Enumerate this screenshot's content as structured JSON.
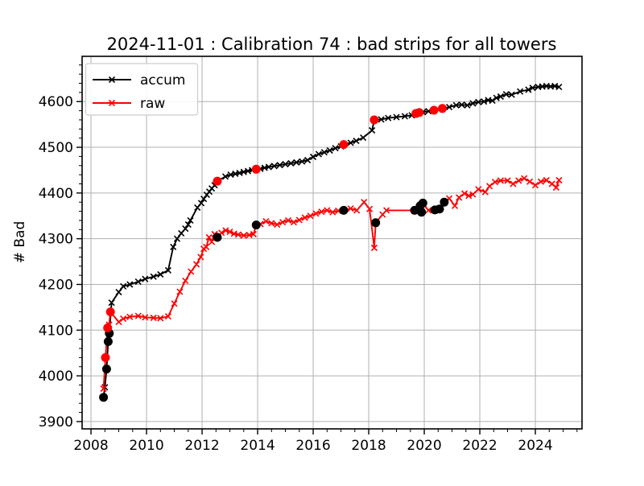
{
  "chart_data": {
    "type": "line",
    "title": "2024-11-01 : Calibration 74 : bad strips for all towers",
    "xlabel": "",
    "ylabel": "# Bad",
    "xlim": [
      2007.68,
      2025.68
    ],
    "ylim": [
      3884,
      4699
    ],
    "grid": true,
    "grid_color": "#b0b0b0",
    "spine_color": "#000000",
    "legend_position": "upper left",
    "x_tick_values": [
      2008,
      2010,
      2012,
      2014,
      2016,
      2018,
      2020,
      2022,
      2024
    ],
    "x_tick_labels": [
      "2008",
      "2010",
      "2012",
      "2014",
      "2016",
      "2018",
      "2020",
      "2022",
      "2024"
    ],
    "x_minor_step": 0.5,
    "y_tick_values": [
      3900,
      4000,
      4100,
      4200,
      4300,
      4400,
      4500,
      4600
    ],
    "y_tick_labels": [
      "3900",
      "4000",
      "4100",
      "4200",
      "4300",
      "4400",
      "4500",
      "4600"
    ],
    "y_minor_step": 20,
    "series": [
      {
        "name": "accum",
        "color": "#000000",
        "marker": "x",
        "points": [
          [
            2008.45,
            3953
          ],
          [
            2008.5,
            3975
          ],
          [
            2008.56,
            4015
          ],
          [
            2008.62,
            4075
          ],
          [
            2008.66,
            4093
          ],
          [
            2008.74,
            4160
          ],
          [
            2009.0,
            4183
          ],
          [
            2009.16,
            4196
          ],
          [
            2009.4,
            4200
          ],
          [
            2009.7,
            4206
          ],
          [
            2009.95,
            4212
          ],
          [
            2010.25,
            4217
          ],
          [
            2010.5,
            4222
          ],
          [
            2010.78,
            4231
          ],
          [
            2010.96,
            4282
          ],
          [
            2011.1,
            4300
          ],
          [
            2011.25,
            4312
          ],
          [
            2011.4,
            4322
          ],
          [
            2011.5,
            4331
          ],
          [
            2011.58,
            4340
          ],
          [
            2011.83,
            4368
          ],
          [
            2011.97,
            4378
          ],
          [
            2012.06,
            4387
          ],
          [
            2012.17,
            4396
          ],
          [
            2012.26,
            4403
          ],
          [
            2012.35,
            4410
          ],
          [
            2012.45,
            4417
          ],
          [
            2012.55,
            4426
          ],
          [
            2012.84,
            4436
          ],
          [
            2013.03,
            4440
          ],
          [
            2013.2,
            4442
          ],
          [
            2013.35,
            4444
          ],
          [
            2013.5,
            4446
          ],
          [
            2013.65,
            4448
          ],
          [
            2013.8,
            4450
          ],
          [
            2013.95,
            4452
          ],
          [
            2014.1,
            4453
          ],
          [
            2014.25,
            4455
          ],
          [
            2014.4,
            4457
          ],
          [
            2014.6,
            4459
          ],
          [
            2014.8,
            4461
          ],
          [
            2015.0,
            4463
          ],
          [
            2015.2,
            4465
          ],
          [
            2015.4,
            4467
          ],
          [
            2015.6,
            4469
          ],
          [
            2015.8,
            4472
          ],
          [
            2016.0,
            4479
          ],
          [
            2016.2,
            4485
          ],
          [
            2016.4,
            4489
          ],
          [
            2016.6,
            4493
          ],
          [
            2016.8,
            4498
          ],
          [
            2017.0,
            4502
          ],
          [
            2017.1,
            4506
          ],
          [
            2017.35,
            4510
          ],
          [
            2017.55,
            4514
          ],
          [
            2017.8,
            4521
          ],
          [
            2018.12,
            4537
          ],
          [
            2018.2,
            4560
          ],
          [
            2018.45,
            4561
          ],
          [
            2018.7,
            4564
          ],
          [
            2019.0,
            4566
          ],
          [
            2019.3,
            4568
          ],
          [
            2019.55,
            4570
          ],
          [
            2019.7,
            4574
          ],
          [
            2019.82,
            4576
          ],
          [
            2019.95,
            4577
          ],
          [
            2020.15,
            4579
          ],
          [
            2020.35,
            4581
          ],
          [
            2020.65,
            4585
          ],
          [
            2020.9,
            4588
          ],
          [
            2021.15,
            4592
          ],
          [
            2021.35,
            4593
          ],
          [
            2021.55,
            4592
          ],
          [
            2021.75,
            4596
          ],
          [
            2021.95,
            4599
          ],
          [
            2022.15,
            4600
          ],
          [
            2022.3,
            4603
          ],
          [
            2022.45,
            4602
          ],
          [
            2022.6,
            4608
          ],
          [
            2022.75,
            4611
          ],
          [
            2022.95,
            4616
          ],
          [
            2023.15,
            4615
          ],
          [
            2023.45,
            4622
          ],
          [
            2023.75,
            4626
          ],
          [
            2023.9,
            4630
          ],
          [
            2024.1,
            4632
          ],
          [
            2024.25,
            4633
          ],
          [
            2024.4,
            4634
          ],
          [
            2024.55,
            4633
          ],
          [
            2024.7,
            4634
          ],
          [
            2024.85,
            4632
          ]
        ],
        "big_dots_black": [
          [
            2008.45,
            3953
          ],
          [
            2008.56,
            4015
          ],
          [
            2008.62,
            4075
          ],
          [
            2008.66,
            4093
          ]
        ],
        "big_dots_red": [
          [
            2012.55,
            4426
          ],
          [
            2013.95,
            4452
          ],
          [
            2017.1,
            4506
          ],
          [
            2018.2,
            4560
          ],
          [
            2019.7,
            4574
          ],
          [
            2019.82,
            4576
          ],
          [
            2020.35,
            4581
          ],
          [
            2020.65,
            4585
          ]
        ]
      },
      {
        "name": "raw",
        "color": "#ff0000",
        "marker": "x",
        "points": [
          [
            2008.45,
            3972
          ],
          [
            2008.52,
            4040
          ],
          [
            2008.6,
            4105
          ],
          [
            2008.65,
            4112
          ],
          [
            2008.7,
            4140
          ],
          [
            2009.0,
            4118
          ],
          [
            2009.16,
            4125
          ],
          [
            2009.4,
            4129
          ],
          [
            2009.7,
            4131
          ],
          [
            2009.95,
            4128
          ],
          [
            2010.25,
            4127
          ],
          [
            2010.5,
            4126
          ],
          [
            2010.78,
            4130
          ],
          [
            2011.0,
            4158
          ],
          [
            2011.2,
            4184
          ],
          [
            2011.4,
            4208
          ],
          [
            2011.6,
            4228
          ],
          [
            2011.8,
            4244
          ],
          [
            2011.95,
            4260
          ],
          [
            2012.06,
            4278
          ],
          [
            2012.15,
            4282
          ],
          [
            2012.25,
            4303
          ],
          [
            2012.35,
            4293
          ],
          [
            2012.45,
            4310
          ],
          [
            2012.55,
            4303
          ],
          [
            2012.7,
            4313
          ],
          [
            2012.85,
            4318
          ],
          [
            2013.0,
            4315
          ],
          [
            2013.15,
            4311
          ],
          [
            2013.3,
            4309
          ],
          [
            2013.5,
            4307
          ],
          [
            2013.7,
            4308
          ],
          [
            2013.85,
            4310
          ],
          [
            2013.95,
            4330
          ],
          [
            2014.1,
            4332
          ],
          [
            2014.3,
            4338
          ],
          [
            2014.5,
            4334
          ],
          [
            2014.7,
            4331
          ],
          [
            2014.9,
            4336
          ],
          [
            2015.1,
            4340
          ],
          [
            2015.3,
            4336
          ],
          [
            2015.5,
            4341
          ],
          [
            2015.7,
            4346
          ],
          [
            2015.9,
            4350
          ],
          [
            2016.1,
            4355
          ],
          [
            2016.3,
            4359
          ],
          [
            2016.5,
            4362
          ],
          [
            2016.7,
            4358
          ],
          [
            2016.9,
            4361
          ],
          [
            2017.1,
            4362
          ],
          [
            2017.35,
            4366
          ],
          [
            2017.57,
            4362
          ],
          [
            2017.83,
            4380
          ],
          [
            2018.03,
            4365
          ],
          [
            2018.2,
            4280
          ],
          [
            2018.25,
            4335
          ],
          [
            2018.5,
            4353
          ],
          [
            2018.64,
            4362
          ],
          [
            2019.65,
            4362
          ],
          [
            2019.85,
            4372
          ],
          [
            2019.9,
            4358
          ],
          [
            2019.95,
            4378
          ],
          [
            2020.15,
            4362
          ],
          [
            2020.38,
            4363
          ],
          [
            2020.55,
            4365
          ],
          [
            2020.72,
            4380
          ],
          [
            2020.9,
            4388
          ],
          [
            2021.1,
            4372
          ],
          [
            2021.25,
            4390
          ],
          [
            2021.45,
            4399
          ],
          [
            2021.6,
            4394
          ],
          [
            2021.75,
            4397
          ],
          [
            2021.95,
            4408
          ],
          [
            2022.2,
            4402
          ],
          [
            2022.35,
            4415
          ],
          [
            2022.55,
            4424
          ],
          [
            2022.75,
            4427
          ],
          [
            2023.0,
            4427
          ],
          [
            2023.2,
            4420
          ],
          [
            2023.4,
            4427
          ],
          [
            2023.6,
            4432
          ],
          [
            2023.8,
            4425
          ],
          [
            2024.0,
            4417
          ],
          [
            2024.2,
            4425
          ],
          [
            2024.4,
            4428
          ],
          [
            2024.6,
            4420
          ],
          [
            2024.75,
            4412
          ],
          [
            2024.85,
            4428
          ]
        ],
        "big_dots_red": [
          [
            2008.52,
            4040
          ],
          [
            2008.6,
            4105
          ],
          [
            2008.7,
            4140
          ]
        ],
        "big_dots_black": [
          [
            2012.55,
            4303
          ],
          [
            2013.95,
            4330
          ],
          [
            2017.1,
            4362
          ],
          [
            2018.25,
            4335
          ],
          [
            2019.65,
            4362
          ],
          [
            2019.85,
            4372
          ],
          [
            2019.9,
            4358
          ],
          [
            2019.95,
            4378
          ],
          [
            2020.38,
            4363
          ],
          [
            2020.55,
            4365
          ],
          [
            2020.72,
            4380
          ]
        ]
      }
    ]
  }
}
